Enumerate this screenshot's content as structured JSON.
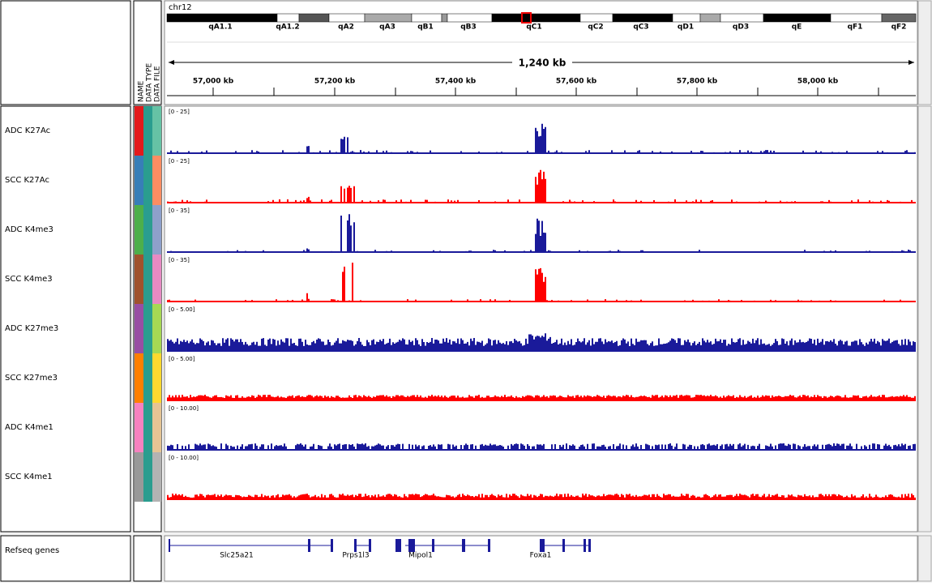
{
  "header": {
    "chromosome": "chr12",
    "region_width": "1,240 kb",
    "cytobands": [
      "qA1.1",
      "qA1.2",
      "qA2",
      "qA3",
      "qB1",
      "qB3",
      "qC1",
      "qC2",
      "qC3",
      "qD1",
      "qD3",
      "qE",
      "qF1",
      "qF2"
    ],
    "ruler_ticks": [
      "57,000 kb",
      "57,200 kb",
      "57,400 kb",
      "57,600 kb",
      "57,800 kb",
      "58,000 kb"
    ]
  },
  "attributes": [
    "NAME",
    "DATA TYPE",
    "DATA FILE"
  ],
  "tracks": [
    {
      "name": "ADC K27Ac",
      "range": "[0 - 25]"
    },
    {
      "name": "SCC K27Ac",
      "range": "[0 - 25]"
    },
    {
      "name": "ADC K4me3",
      "range": "[0 - 35]"
    },
    {
      "name": "SCC K4me3",
      "range": "[0 - 35]"
    },
    {
      "name": "ADC K27me3",
      "range": "[0 - 5.00]"
    },
    {
      "name": "SCC K27me3",
      "range": "[0 - 5.00]"
    },
    {
      "name": "ADC K4me1",
      "range": "[0 - 10.00]"
    },
    {
      "name": "SCC K4me1",
      "range": "[0 - 10.00]"
    }
  ],
  "gene_track": {
    "name": "Refseq genes",
    "genes": [
      "Slc25a21",
      "Prps1l3",
      "Mipol1",
      "Foxa1"
    ]
  }
}
